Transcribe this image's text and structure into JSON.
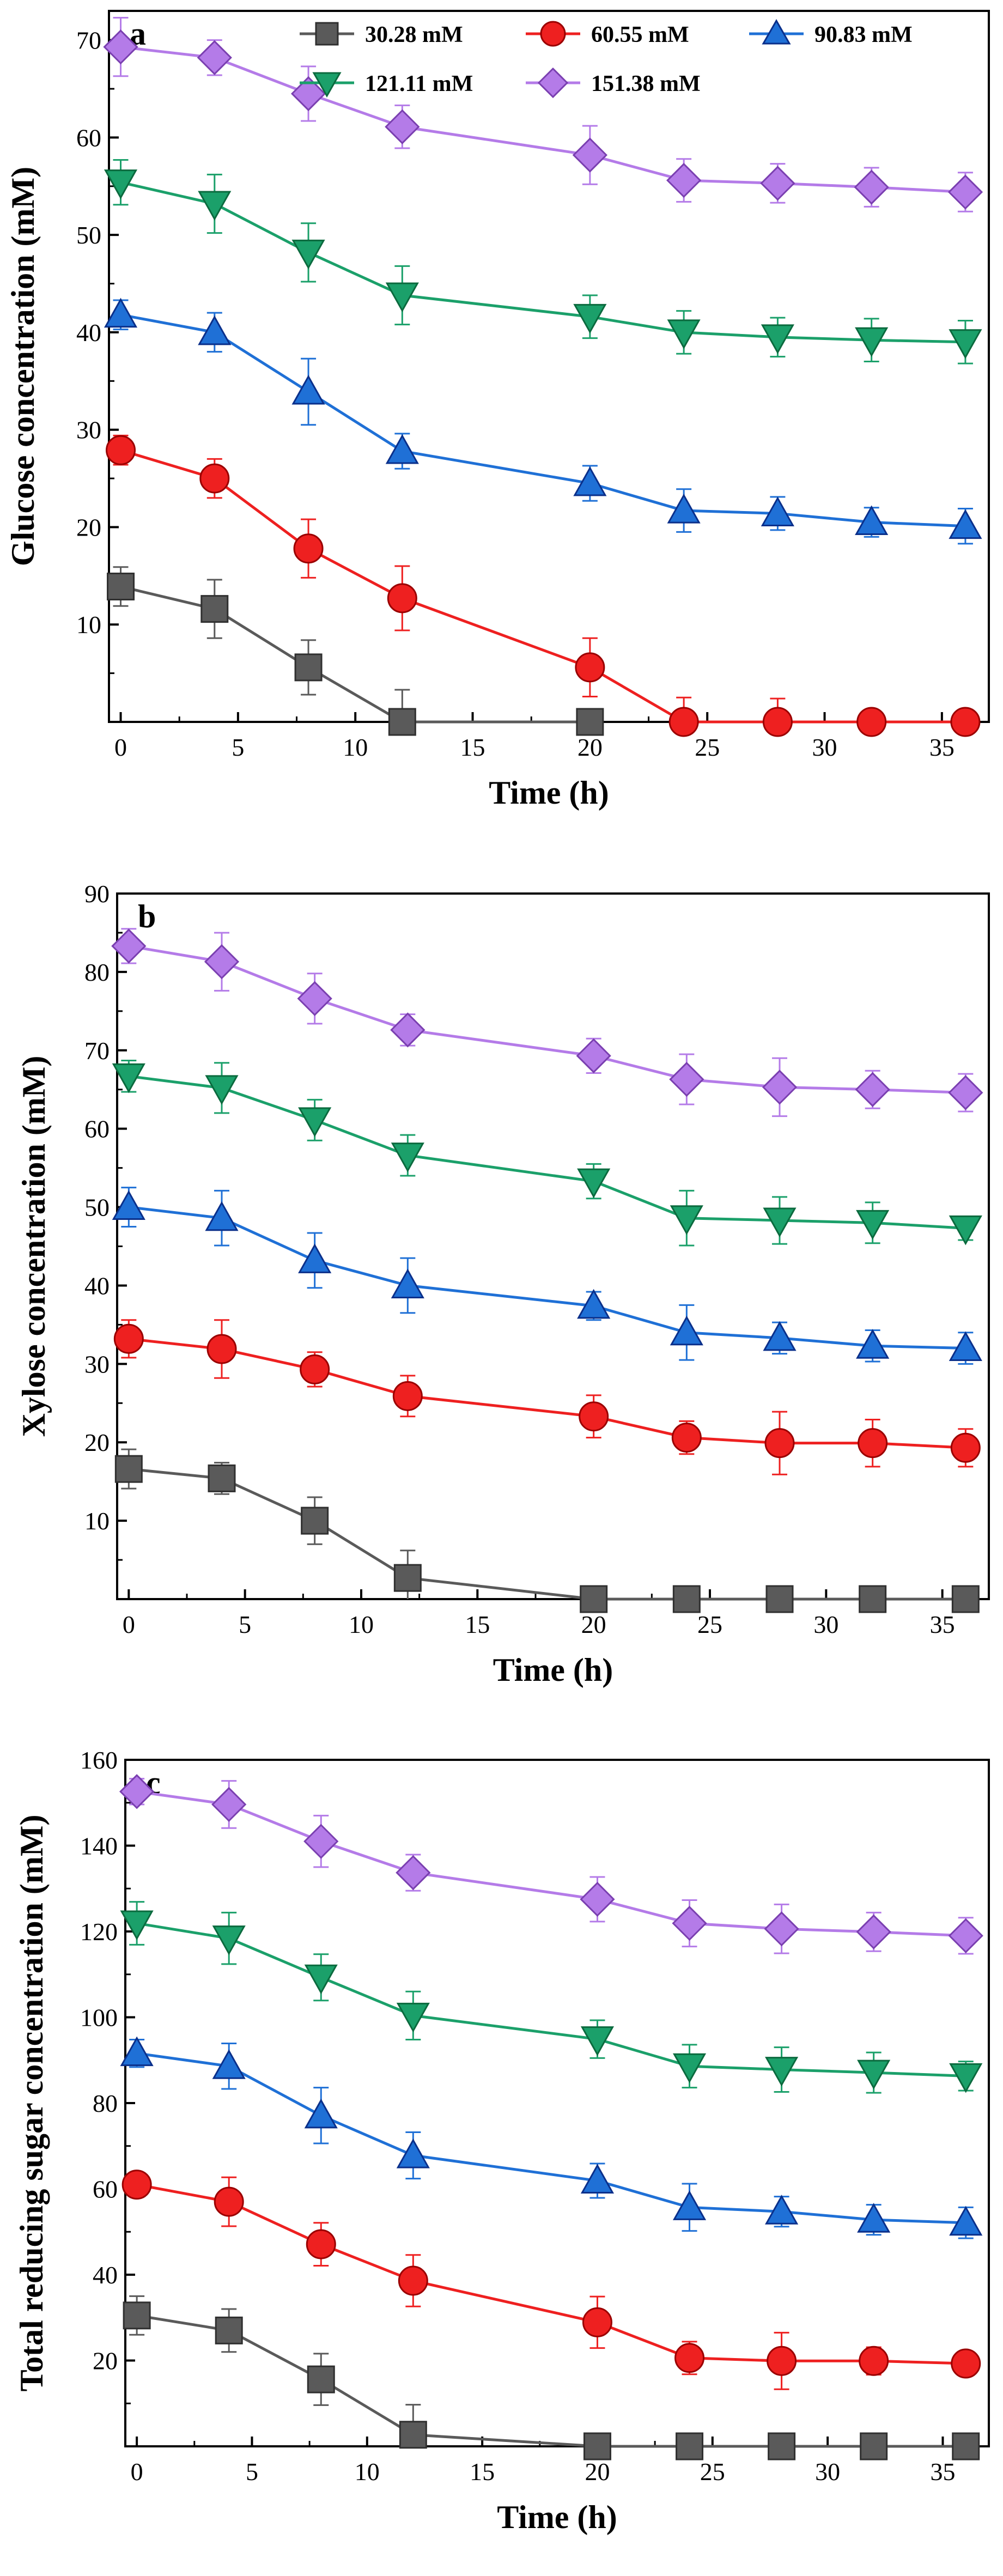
{
  "legend": [
    {
      "label": "30.28 mM",
      "color": "#5a5a5a",
      "edge": "#303030",
      "marker": "square",
      "icon": "square-marker-icon"
    },
    {
      "label": "60.55 mM",
      "color": "#ee2020",
      "edge": "#9a0000",
      "marker": "circle",
      "icon": "circle-marker-icon"
    },
    {
      "label": "90.83 mM",
      "color": "#1f70d6",
      "edge": "#0a2f8a",
      "marker": "triangle-up",
      "icon": "triangle-up-marker-icon"
    },
    {
      "label": "121.11 mM",
      "color": "#1ba06a",
      "edge": "#0b6a3e",
      "marker": "triangle-down",
      "icon": "triangle-down-marker-icon"
    },
    {
      "label": "151.38 mM",
      "color": "#b47be8",
      "edge": "#7a3fb0",
      "marker": "diamond",
      "icon": "diamond-marker-icon"
    }
  ],
  "chart_data": [
    {
      "type": "line",
      "panel": "a",
      "xlabel": "Time (h)",
      "ylabel": "Glucose concentration (mM)",
      "xlim": [
        -0.5,
        37
      ],
      "ylim": [
        0,
        73
      ],
      "xticks": [
        0,
        5,
        10,
        15,
        20,
        25,
        30,
        35
      ],
      "yticks": [
        10,
        20,
        30,
        40,
        50,
        60,
        70
      ],
      "x": [
        0,
        4,
        8,
        12,
        20,
        24,
        28,
        32,
        36
      ],
      "series": [
        {
          "name": "30.28 mM",
          "values": [
            13.9,
            11.6,
            5.6,
            0,
            0,
            null,
            null,
            null,
            null
          ],
          "errors": [
            2.0,
            3.0,
            2.8,
            3.3,
            1.0,
            null,
            null,
            null,
            null
          ]
        },
        {
          "name": "60.55 mM",
          "values": [
            27.9,
            25.0,
            17.8,
            12.7,
            5.6,
            0,
            0,
            0,
            0
          ],
          "errors": [
            1.5,
            2.0,
            3.0,
            3.3,
            3.0,
            2.5,
            2.4,
            1.0,
            0.6
          ]
        },
        {
          "name": "90.83 mM",
          "values": [
            41.8,
            40.0,
            33.9,
            27.8,
            24.5,
            21.7,
            21.4,
            20.5,
            20.1
          ],
          "errors": [
            1.5,
            2.0,
            3.4,
            1.8,
            1.8,
            2.2,
            1.7,
            1.5,
            1.8
          ]
        },
        {
          "name": "121.11 mM",
          "values": [
            55.4,
            53.2,
            48.2,
            43.8,
            41.6,
            40.0,
            39.5,
            39.2,
            39.0
          ],
          "errors": [
            2.3,
            3.0,
            3.0,
            3.0,
            2.2,
            2.2,
            2.0,
            2.2,
            2.2
          ]
        },
        {
          "name": "151.38 mM",
          "values": [
            69.3,
            68.2,
            64.5,
            61.1,
            58.2,
            55.6,
            55.3,
            54.9,
            54.4
          ],
          "errors": [
            3.0,
            1.8,
            2.8,
            2.2,
            3.0,
            2.2,
            2.0,
            2.0,
            2.0
          ]
        }
      ]
    },
    {
      "type": "line",
      "panel": "b",
      "xlabel": "Time (h)",
      "ylabel": "Xylose concentration (mM)",
      "xlim": [
        -0.5,
        37
      ],
      "ylim": [
        0,
        90
      ],
      "xticks": [
        0,
        5,
        10,
        15,
        20,
        25,
        30,
        35
      ],
      "yticks": [
        10,
        20,
        30,
        40,
        50,
        60,
        70,
        80,
        90
      ],
      "x": [
        0,
        4,
        8,
        12,
        20,
        24,
        28,
        32,
        36
      ],
      "series": [
        {
          "name": "30.28 mM",
          "values": [
            16.6,
            15.4,
            10.0,
            2.7,
            0,
            0,
            0,
            0,
            0
          ],
          "errors": [
            2.5,
            2.0,
            3.0,
            3.5,
            0.5,
            0.5,
            0.5,
            0.5,
            0.5
          ]
        },
        {
          "name": "60.55 mM",
          "values": [
            33.2,
            31.9,
            29.3,
            25.9,
            23.3,
            20.6,
            19.9,
            19.9,
            19.3
          ],
          "errors": [
            2.4,
            3.7,
            2.2,
            2.6,
            2.7,
            2.1,
            4.0,
            3.0,
            2.4
          ]
        },
        {
          "name": "90.83 mM",
          "values": [
            50.0,
            48.6,
            43.2,
            40.0,
            37.4,
            34.0,
            33.3,
            32.3,
            32.0
          ],
          "errors": [
            2.5,
            3.5,
            3.5,
            3.5,
            1.8,
            3.5,
            2.0,
            2.0,
            2.0
          ]
        },
        {
          "name": "121.11 mM",
          "values": [
            66.7,
            65.2,
            61.1,
            56.6,
            53.3,
            48.6,
            48.3,
            48.0,
            47.3
          ],
          "errors": [
            2.0,
            3.2,
            2.6,
            2.6,
            2.2,
            3.5,
            3.0,
            2.6,
            1.5
          ]
        },
        {
          "name": "151.38 mM",
          "values": [
            83.3,
            81.3,
            76.6,
            72.6,
            69.3,
            66.3,
            65.3,
            65.0,
            64.6
          ],
          "errors": [
            2.2,
            3.7,
            3.2,
            2.0,
            2.2,
            3.2,
            3.7,
            2.4,
            2.4
          ]
        }
      ]
    },
    {
      "type": "line",
      "panel": "c",
      "xlabel": "Time (h)",
      "ylabel": "Total reducing sugar concentration (mM)",
      "xlim": [
        -0.5,
        37
      ],
      "ylim": [
        0,
        160
      ],
      "xticks": [
        0,
        5,
        10,
        15,
        20,
        25,
        30,
        35
      ],
      "yticks": [
        20,
        40,
        60,
        80,
        100,
        120,
        140,
        160
      ],
      "x": [
        0,
        4,
        8,
        12,
        20,
        24,
        28,
        32,
        36
      ],
      "series": [
        {
          "name": "30.28 mM",
          "values": [
            30.5,
            27.0,
            15.6,
            2.7,
            0,
            0,
            0,
            0,
            0
          ],
          "errors": [
            4.5,
            5.0,
            6.0,
            7.0,
            1.0,
            1.0,
            1.0,
            1.0,
            1.0
          ]
        },
        {
          "name": "60.55 mM",
          "values": [
            61.0,
            57.0,
            47.1,
            38.6,
            28.9,
            20.6,
            19.9,
            19.9,
            19.3
          ],
          "errors": [
            2.2,
            5.7,
            5.0,
            6.0,
            6.0,
            3.8,
            6.6,
            3.2,
            2.0
          ]
        },
        {
          "name": "90.83 mM",
          "values": [
            91.6,
            88.6,
            77.1,
            67.8,
            61.9,
            55.7,
            54.7,
            52.8,
            52.1
          ],
          "errors": [
            3.2,
            5.3,
            6.5,
            5.4,
            4.0,
            5.5,
            3.5,
            3.5,
            3.6
          ]
        },
        {
          "name": "121.11 mM",
          "values": [
            121.9,
            118.4,
            109.3,
            100.4,
            94.9,
            88.6,
            87.8,
            87.1,
            86.3
          ],
          "errors": [
            5.0,
            6.0,
            5.4,
            5.6,
            4.4,
            5.0,
            5.2,
            4.7,
            3.4
          ]
        },
        {
          "name": "151.38 mM",
          "values": [
            152.6,
            149.6,
            141.0,
            133.7,
            127.5,
            121.9,
            120.6,
            119.9,
            119.0
          ],
          "errors": [
            3.0,
            5.5,
            6.0,
            4.2,
            5.2,
            5.4,
            5.7,
            4.5,
            4.2
          ]
        }
      ]
    }
  ]
}
